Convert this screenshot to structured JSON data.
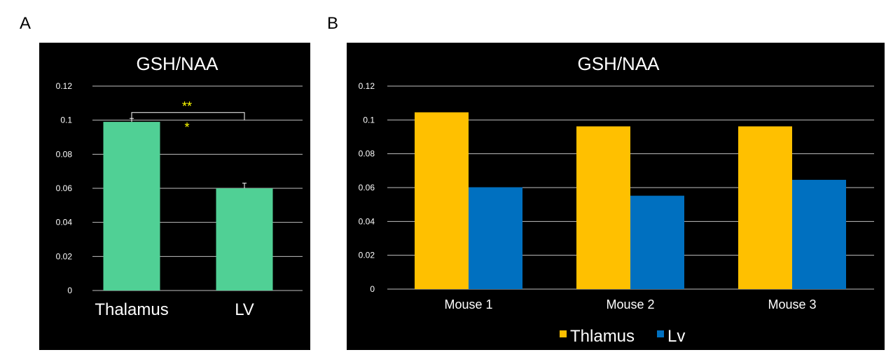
{
  "panels": {
    "a_label": "A",
    "b_label": "B"
  },
  "colors": {
    "background": "#000000",
    "grid": "#bfbfbf",
    "text": "#ffffff",
    "bar_a": "#50d095",
    "thalamus": "#ffc000",
    "lv": "#0070c0",
    "significance": "#ffff00"
  },
  "chart_data": [
    {
      "id": "A",
      "type": "bar",
      "title": "GSH/NAA",
      "categories": [
        "Thalamus",
        "LV"
      ],
      "values": [
        0.099,
        0.06
      ],
      "error_bars": [
        0.002,
        0.003
      ],
      "ylim": [
        0,
        0.12
      ],
      "yticks": [
        "0",
        "0.02",
        "0.04",
        "0.06",
        "0.08",
        "0.1",
        "0.12"
      ],
      "grid": true,
      "annotation": {
        "double": "**",
        "single": "*"
      }
    },
    {
      "id": "B",
      "type": "bar",
      "title": "GSH/NAA",
      "categories": [
        "Mouse 1",
        "Mouse 2",
        "Mouse 3"
      ],
      "series": [
        {
          "name": "Thlamus",
          "values": [
            0.1045,
            0.0962,
            0.0962
          ]
        },
        {
          "name": "Lv",
          "values": [
            0.0602,
            0.0552,
            0.0646
          ]
        }
      ],
      "ylim": [
        0,
        0.12
      ],
      "yticks": [
        "0",
        "0.02",
        "0.04",
        "0.06",
        "0.08",
        "0.1",
        "0.12"
      ],
      "grid": true,
      "legend": "bottom"
    }
  ]
}
